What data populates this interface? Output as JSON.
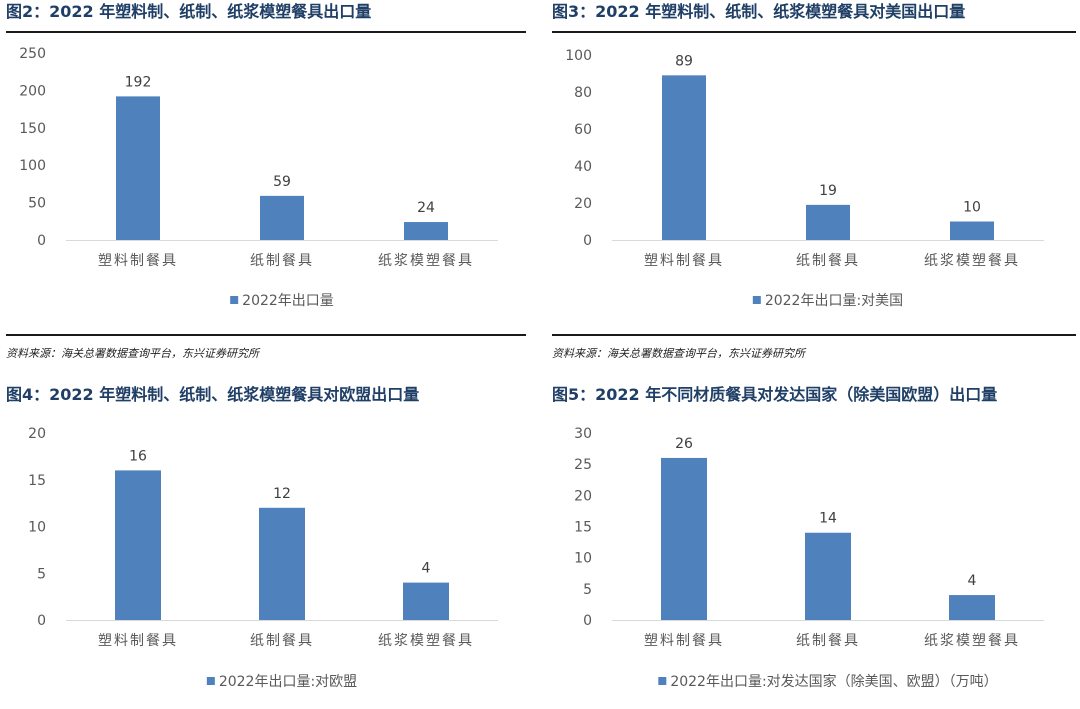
{
  "source_text": "资料来源：海关总署数据查询平台，东兴证券研究所",
  "colors": {
    "bar": "#4F81BD",
    "title": "#1F3F66",
    "axis_text": "#595959"
  },
  "chart_data": [
    {
      "type": "bar",
      "title": "图2：2022 年塑料制、纸制、纸浆模塑餐具出口量",
      "categories": [
        "塑料制餐具",
        "纸制餐具",
        "纸浆模塑餐具"
      ],
      "series": [
        {
          "name": "2022年出口量",
          "values": [
            192,
            59,
            24
          ]
        }
      ],
      "ylim": [
        0,
        250
      ],
      "yticks": [
        0,
        50,
        100,
        150,
        200,
        250
      ],
      "legend_position": "bottom",
      "grid": false
    },
    {
      "type": "bar",
      "title": "图3：2022 年塑料制、纸制、纸浆模塑餐具对美国出口量",
      "categories": [
        "塑料制餐具",
        "纸制餐具",
        "纸浆模塑餐具"
      ],
      "series": [
        {
          "name": "2022年出口量:对美国",
          "values": [
            89,
            19,
            10
          ]
        }
      ],
      "ylim": [
        0,
        100
      ],
      "yticks": [
        0,
        20,
        40,
        60,
        80,
        100
      ],
      "legend_position": "bottom",
      "grid": false
    },
    {
      "type": "bar",
      "title": "图4：2022 年塑料制、纸制、纸浆模塑餐具对欧盟出口量",
      "categories": [
        "塑料制餐具",
        "纸制餐具",
        "纸浆模塑餐具"
      ],
      "series": [
        {
          "name": "2022年出口量:对欧盟",
          "values": [
            16,
            12,
            4
          ]
        }
      ],
      "ylim": [
        0,
        20
      ],
      "yticks": [
        0,
        5,
        10,
        15,
        20
      ],
      "legend_position": "bottom",
      "grid": false
    },
    {
      "type": "bar",
      "title": "图5：2022 年不同材质餐具对发达国家（除美国欧盟）出口量",
      "categories": [
        "塑料制餐具",
        "纸制餐具",
        "纸浆模塑餐具"
      ],
      "series": [
        {
          "name": "2022年出口量:对发达国家（除美国、欧盟）（万吨）",
          "values": [
            26,
            14,
            4
          ]
        }
      ],
      "ylim": [
        0,
        30
      ],
      "yticks": [
        0,
        5,
        10,
        15,
        20,
        25,
        30
      ],
      "legend_position": "bottom",
      "grid": false
    }
  ]
}
